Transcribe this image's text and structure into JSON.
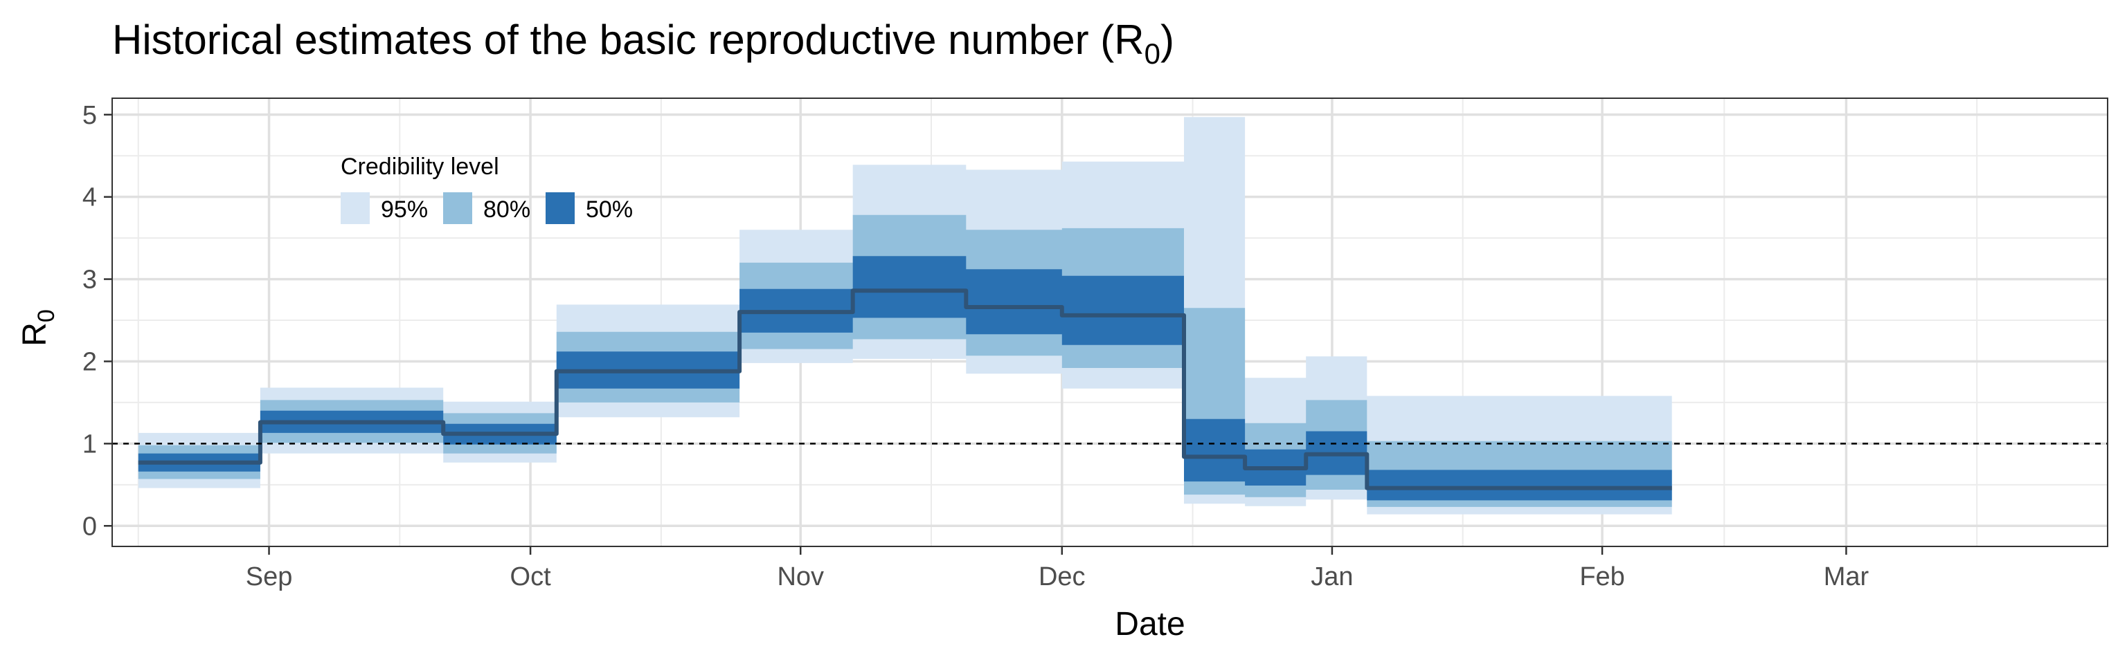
{
  "chart_data": {
    "type": "area",
    "title": "Historical estimates of the basic reproductive number (R",
    "title_subscript": "0",
    "title_suffix": ")",
    "xlabel": "Date",
    "ylabel": "R",
    "ylabel_subscript": "0",
    "ylim": [
      -0.25,
      5.2
    ],
    "yticks": [
      0,
      1,
      2,
      3,
      4,
      5
    ],
    "xlim": [
      "2020-08-14",
      "2021-03-31"
    ],
    "xticks": [
      {
        "date": "2020-09-01",
        "label": "Sep"
      },
      {
        "date": "2020-10-01",
        "label": "Oct"
      },
      {
        "date": "2020-11-01",
        "label": "Nov"
      },
      {
        "date": "2020-12-01",
        "label": "Dec"
      },
      {
        "date": "2021-01-01",
        "label": "Jan"
      },
      {
        "date": "2021-02-01",
        "label": "Feb"
      },
      {
        "date": "2021-03-01",
        "label": "Mar"
      }
    ],
    "minor_grid_dates": [
      "2020-08-17",
      "2020-09-16",
      "2020-10-16",
      "2020-11-16",
      "2020-12-16",
      "2021-01-16",
      "2021-02-15",
      "2021-03-16"
    ],
    "grid": true,
    "reference_line": {
      "y": 1,
      "style": "dashed"
    },
    "legend": {
      "title": "Credibility level",
      "placement": "top-left",
      "items": [
        {
          "label": "95%",
          "color": "#d6e5f4"
        },
        {
          "label": "80%",
          "color": "#92bfdc"
        },
        {
          "label": "50%",
          "color": "#2a71b2"
        }
      ]
    },
    "colors": {
      "ci95": "#d6e5f4",
      "ci80": "#92bfdc",
      "ci50": "#2a71b2",
      "median": "#2f5478"
    },
    "segments": [
      {
        "start": "2020-08-17",
        "end": "2020-08-30",
        "median": 0.77,
        "lo50": 0.66,
        "hi50": 0.88,
        "lo80": 0.57,
        "hi80": 0.98,
        "lo95": 0.46,
        "hi95": 1.13
      },
      {
        "start": "2020-08-31",
        "end": "2020-09-20",
        "median": 1.26,
        "lo50": 1.13,
        "hi50": 1.4,
        "lo80": 1.01,
        "hi80": 1.53,
        "lo95": 0.88,
        "hi95": 1.68
      },
      {
        "start": "2020-09-21",
        "end": "2020-10-03",
        "median": 1.12,
        "lo50": 0.99,
        "hi50": 1.24,
        "lo80": 0.88,
        "hi80": 1.37,
        "lo95": 0.77,
        "hi95": 1.51
      },
      {
        "start": "2020-10-04",
        "end": "2020-10-24",
        "median": 1.88,
        "lo50": 1.67,
        "hi50": 2.12,
        "lo80": 1.5,
        "hi80": 2.36,
        "lo95": 1.32,
        "hi95": 2.69
      },
      {
        "start": "2020-10-25",
        "end": "2020-11-06",
        "median": 2.6,
        "lo50": 2.35,
        "hi50": 2.88,
        "lo80": 2.15,
        "hi80": 3.2,
        "lo95": 1.98,
        "hi95": 3.6
      },
      {
        "start": "2020-11-07",
        "end": "2020-11-19",
        "median": 2.86,
        "lo50": 2.53,
        "hi50": 3.28,
        "lo80": 2.27,
        "hi80": 3.78,
        "lo95": 2.03,
        "hi95": 4.39
      },
      {
        "start": "2020-11-20",
        "end": "2020-11-30",
        "median": 2.66,
        "lo50": 2.33,
        "hi50": 3.12,
        "lo80": 2.07,
        "hi80": 3.6,
        "lo95": 1.85,
        "hi95": 4.33
      },
      {
        "start": "2020-12-01",
        "end": "2020-12-14",
        "median": 2.56,
        "lo50": 2.2,
        "hi50": 3.04,
        "lo80": 1.92,
        "hi80": 3.62,
        "lo95": 1.67,
        "hi95": 4.43
      },
      {
        "start": "2020-12-15",
        "end": "2020-12-21",
        "median": 0.84,
        "lo50": 0.54,
        "hi50": 1.3,
        "lo80": 0.38,
        "hi80": 2.65,
        "lo95": 0.27,
        "hi95": 4.97
      },
      {
        "start": "2020-12-22",
        "end": "2020-12-28",
        "median": 0.7,
        "lo50": 0.49,
        "hi50": 0.93,
        "lo80": 0.35,
        "hi80": 1.25,
        "lo95": 0.24,
        "hi95": 1.8
      },
      {
        "start": "2020-12-29",
        "end": "2021-01-04",
        "median": 0.87,
        "lo50": 0.62,
        "hi50": 1.15,
        "lo80": 0.44,
        "hi80": 1.53,
        "lo95": 0.32,
        "hi95": 2.06
      },
      {
        "start": "2021-01-05",
        "end": "2021-02-08",
        "median": 0.46,
        "lo50": 0.31,
        "hi50": 0.68,
        "lo80": 0.23,
        "hi80": 1.03,
        "lo95": 0.14,
        "hi95": 1.58
      }
    ]
  }
}
